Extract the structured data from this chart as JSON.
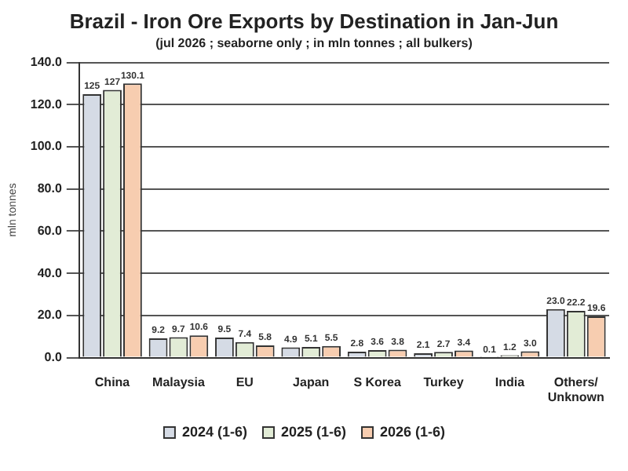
{
  "chart_data": {
    "type": "bar",
    "title": "Brazil - Iron Ore Exports by Destination in Jan-Jun",
    "subtitle": "(jul 2026 ; seaborne only ; in mln tonnes ; all bulkers)",
    "ylabel": "mln tonnes",
    "categories": [
      "China",
      "Malaysia",
      "EU",
      "Japan",
      "S Korea",
      "Turkey",
      "India",
      "Others/ Unknown"
    ],
    "series": [
      {
        "name": "2024 (1-6)",
        "color": "#d5dbe5",
        "values": [
          125,
          9.2,
          9.5,
          4.9,
          2.8,
          2.1,
          0.1,
          23.0
        ],
        "value_labels": [
          "125",
          "9.2",
          "9.5",
          "4.9",
          "2.8",
          "2.1",
          "0.1",
          "23.0"
        ]
      },
      {
        "name": "2025 (1-6)",
        "color": "#e2ecd6",
        "values": [
          127,
          9.7,
          7.4,
          5.1,
          3.6,
          2.7,
          1.2,
          22.2
        ],
        "value_labels": [
          "127",
          "9.7",
          "7.4",
          "5.1",
          "3.6",
          "2.7",
          "1.2",
          "22.2"
        ]
      },
      {
        "name": "2026 (1-6)",
        "color": "#f7cdb0",
        "values": [
          130.1,
          10.6,
          5.8,
          5.5,
          3.8,
          3.4,
          3.0,
          19.6
        ],
        "value_labels": [
          "130.1",
          "10.6",
          "5.8",
          "5.5",
          "3.8",
          "3.4",
          "3.0",
          "19.6"
        ]
      }
    ],
    "ylim": [
      0,
      140
    ],
    "yticks": [
      {
        "value": 0,
        "label": "0.0"
      },
      {
        "value": 20,
        "label": "20.0"
      },
      {
        "value": 40,
        "label": "40.0"
      },
      {
        "value": 60,
        "label": "60.0"
      },
      {
        "value": 80,
        "label": "80.0"
      },
      {
        "value": 100,
        "label": "100.0"
      },
      {
        "value": 120,
        "label": "120.0"
      },
      {
        "value": 140,
        "label": "140.0"
      }
    ],
    "grid": "y",
    "legend": "bottom"
  }
}
